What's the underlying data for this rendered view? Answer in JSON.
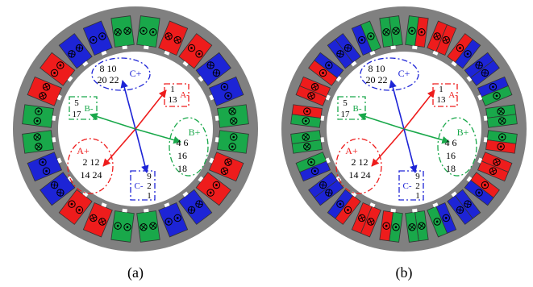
{
  "colors": {
    "phase_a": "#ee1c1c",
    "phase_b": "#19a84a",
    "phase_c": "#1d24d6",
    "iron": "#808080",
    "background": "#ffffff"
  },
  "subfigures": [
    {
      "caption": "(a)",
      "groups": {
        "c_plus": {
          "sign": "C+",
          "lines": [
            "8 10",
            "20 22"
          ]
        },
        "a_minus": {
          "sign": "A-",
          "lines": [
            "1",
            "13"
          ]
        },
        "b_minus": {
          "sign": "B-",
          "lines": [
            "5",
            "17"
          ]
        },
        "b_plus": {
          "sign": "B+",
          "lines": [
            "4 6",
            "16",
            "18"
          ]
        },
        "a_plus": {
          "sign": "A+",
          "lines": [
            "2 12",
            "14 24"
          ]
        },
        "c_minus": {
          "sign": "C-",
          "lines": [
            "9",
            "2",
            "1"
          ]
        }
      }
    },
    {
      "caption": "(b)",
      "groups": {
        "c_plus": {
          "sign": "C+",
          "lines": [
            "8 10",
            "20 22"
          ]
        },
        "a_minus": {
          "sign": "A-",
          "lines": [
            "1",
            "13"
          ]
        },
        "b_minus": {
          "sign": "B-",
          "lines": [
            "5",
            "17"
          ]
        },
        "b_plus": {
          "sign": "B+",
          "lines": [
            "4 6",
            "16",
            "18"
          ]
        },
        "a_plus": {
          "sign": "A+",
          "lines": [
            "2 12",
            "14 24"
          ]
        },
        "c_minus": {
          "sign": "C-",
          "lines": [
            "9",
            "2",
            "1"
          ]
        }
      }
    }
  ]
}
